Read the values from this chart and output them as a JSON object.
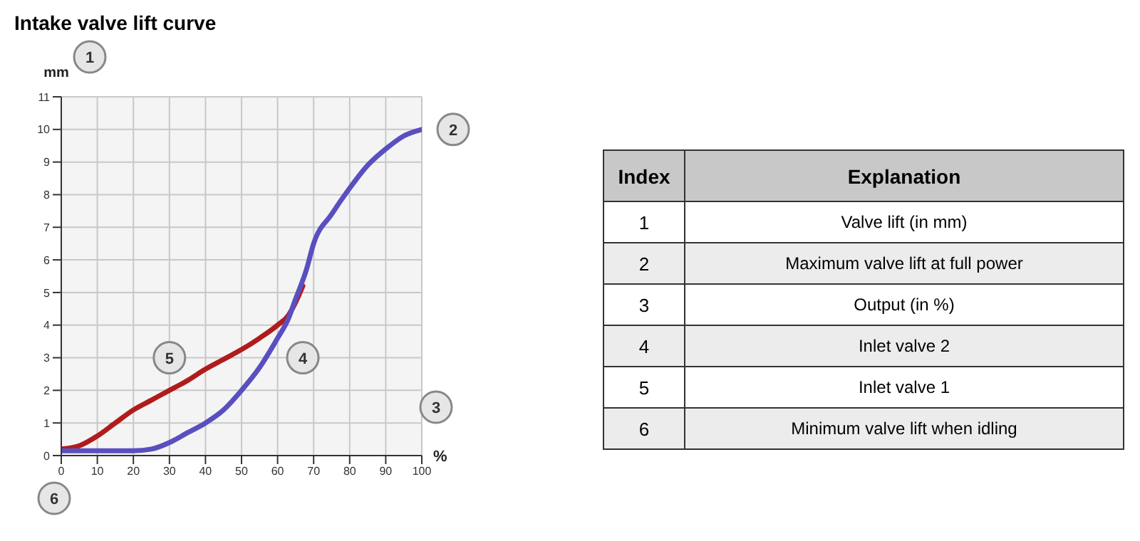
{
  "chart_data": {
    "type": "line",
    "title": "Intake valve lift curve",
    "xlabel": "%",
    "ylabel": "mm",
    "xlim": [
      0,
      100
    ],
    "xticks": [
      0,
      10,
      20,
      30,
      40,
      50,
      60,
      70,
      80,
      90,
      100
    ],
    "ylim": [
      0,
      11
    ],
    "yticks": [
      0,
      1,
      2,
      3,
      4,
      5,
      6,
      7,
      8,
      9,
      10,
      11
    ],
    "grid": true,
    "marker": "none",
    "series": [
      {
        "color": "#b01c1c",
        "x": [
          0,
          5,
          10,
          15,
          20,
          25,
          30,
          35,
          40,
          45,
          50,
          55,
          60,
          63,
          65,
          67
        ],
        "values": [
          0.2,
          0.3,
          0.6,
          1.0,
          1.4,
          1.7,
          2.0,
          2.3,
          2.65,
          2.95,
          3.25,
          3.6,
          4.0,
          4.3,
          4.7,
          5.2
        ]
      },
      {
        "color": "#5a4fc0",
        "x": [
          0,
          10,
          20,
          25,
          30,
          35,
          40,
          45,
          50,
          55,
          60,
          63,
          65,
          68,
          70,
          75,
          80,
          85,
          90,
          95,
          100
        ],
        "values": [
          0.15,
          0.15,
          0.15,
          0.2,
          0.4,
          0.7,
          1.0,
          1.4,
          2.0,
          2.7,
          3.6,
          4.2,
          4.8,
          5.7,
          6.5,
          7.4,
          8.2,
          8.9,
          9.4,
          9.8,
          10.0
        ]
      }
    ],
    "annotations": [
      "1",
      "3",
      "6",
      {
        "text": "2",
        "x": 100,
        "y": 10
      },
      {
        "text": "5",
        "x": 30,
        "y": 3
      },
      {
        "text": "4",
        "x": 67,
        "y": 3
      },
      "Index",
      "Explanation",
      "1",
      "Valve lift (in mm)",
      "2",
      "Maximum valve lift at full power",
      "3",
      "Output (in %)",
      "4",
      "Inlet valve 2",
      "5",
      "Inlet valve 1",
      "6",
      "Minimum valve lift when idling"
    ]
  }
}
